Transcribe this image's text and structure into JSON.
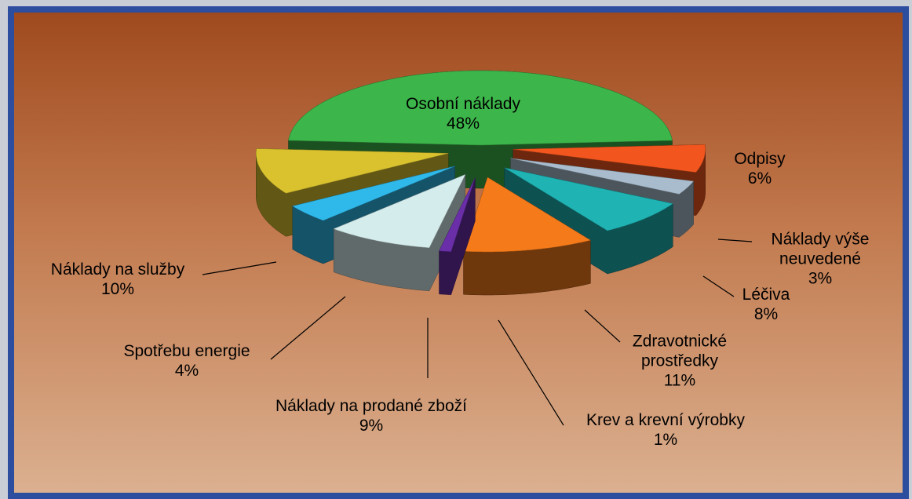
{
  "chart_data": {
    "type": "pie3d",
    "categories": [
      "Osobní náklady",
      "Odpisy",
      "Náklady výše neuvedené",
      "Léčiva",
      "Zdravotnické prostředky",
      "Krev a krevní výrobky",
      "Náklady na prodané zboží",
      "Spotřebu energie",
      "Náklady na služby"
    ],
    "values": [
      48,
      6,
      3,
      8,
      11,
      1,
      9,
      4,
      10
    ],
    "value_labels": [
      "48%",
      "6%",
      "3%",
      "8%",
      "11%",
      "1%",
      "9%",
      "4%",
      "10%"
    ],
    "colors": [
      "#3cb54a",
      "#f2561e",
      "#a9bccd",
      "#1fb3b3",
      "#f47a1a",
      "#6a2fa8",
      "#d5ecec",
      "#2fb9ea",
      "#d9c22e"
    ]
  }
}
